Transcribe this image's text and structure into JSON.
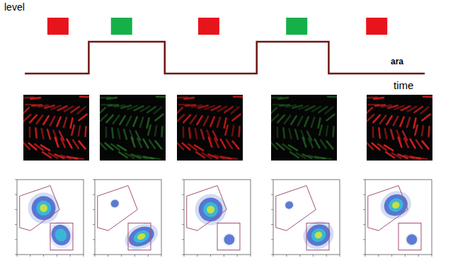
{
  "chart_data": {
    "type": "line",
    "y_label": "level",
    "x_label": "time",
    "xlim": [
      0,
      10
    ],
    "ylim": [
      0,
      1
    ],
    "tick_labels": false,
    "grid": false,
    "series": [
      {
        "name": "ara",
        "color": "#6e1414",
        "line_style": "step",
        "x": [
          0,
          1.6,
          3.5,
          5.8,
          7.6,
          10
        ],
        "values": [
          0.07,
          0.6,
          0.07,
          0.6,
          0.07,
          0.07
        ]
      }
    ],
    "indicators": {
      "x": [
        0.83,
        2.42,
        4.6,
        6.8,
        8.8
      ],
      "y": 0.88,
      "colors": [
        "#e8141c",
        "#16b04a",
        "#e8141c",
        "#16b04a",
        "#e8141c"
      ]
    }
  },
  "microscopy": {
    "colors": [
      "#e02020",
      "#2c8a2c",
      "#c81818",
      "#2a7a2a",
      "#e02020"
    ]
  },
  "flow_cytometry": {
    "xlim": [
      0,
      5
    ],
    "ylim": [
      0,
      5
    ],
    "xticks": [
      0,
      1,
      2,
      3,
      4,
      5
    ],
    "yticks": [
      0,
      1,
      2,
      3,
      4,
      5
    ],
    "tick_labels": false,
    "gates": {
      "polygon": [
        [
          0.2,
          1.8
        ],
        [
          0.2,
          3.9
        ],
        [
          2.5,
          4.6
        ],
        [
          3.2,
          3.0
        ],
        [
          1.0,
          1.6
        ]
      ],
      "rectangle": {
        "x": [
          2.5,
          4.2
        ],
        "y": [
          0.3,
          2.1
        ]
      },
      "color": "#a0507a"
    },
    "plots": [
      {
        "populations": [
          {
            "center": [
              2.0,
              3.1
            ],
            "spread": [
              0.9,
              0.8
            ],
            "density": 1
          },
          {
            "center": [
              3.3,
              1.3
            ],
            "spread": [
              0.7,
              0.7
            ],
            "density": 0.6
          }
        ]
      },
      {
        "populations": [
          {
            "center": [
              3.5,
              1.2
            ],
            "spread": [
              1.0,
              0.6
            ],
            "density": 1
          },
          {
            "center": [
              1.5,
              3.4
            ],
            "spread": [
              0.3,
              0.25
            ],
            "density": 0.2
          }
        ]
      },
      {
        "populations": [
          {
            "center": [
              2.0,
              3.0
            ],
            "spread": [
              0.9,
              0.8
            ],
            "density": 1
          },
          {
            "center": [
              3.4,
              1.0
            ],
            "spread": [
              0.4,
              0.35
            ],
            "density": 0.3
          }
        ]
      },
      {
        "populations": [
          {
            "center": [
              3.4,
              1.3
            ],
            "spread": [
              0.9,
              0.7
            ],
            "density": 1
          },
          {
            "center": [
              1.2,
              3.3
            ],
            "spread": [
              0.3,
              0.25
            ],
            "density": 0.2
          }
        ]
      },
      {
        "populations": [
          {
            "center": [
              2.3,
              3.3
            ],
            "spread": [
              0.9,
              0.7
            ],
            "density": 1
          },
          {
            "center": [
              3.5,
              1.0
            ],
            "spread": [
              0.4,
              0.35
            ],
            "density": 0.35
          }
        ]
      }
    ]
  }
}
